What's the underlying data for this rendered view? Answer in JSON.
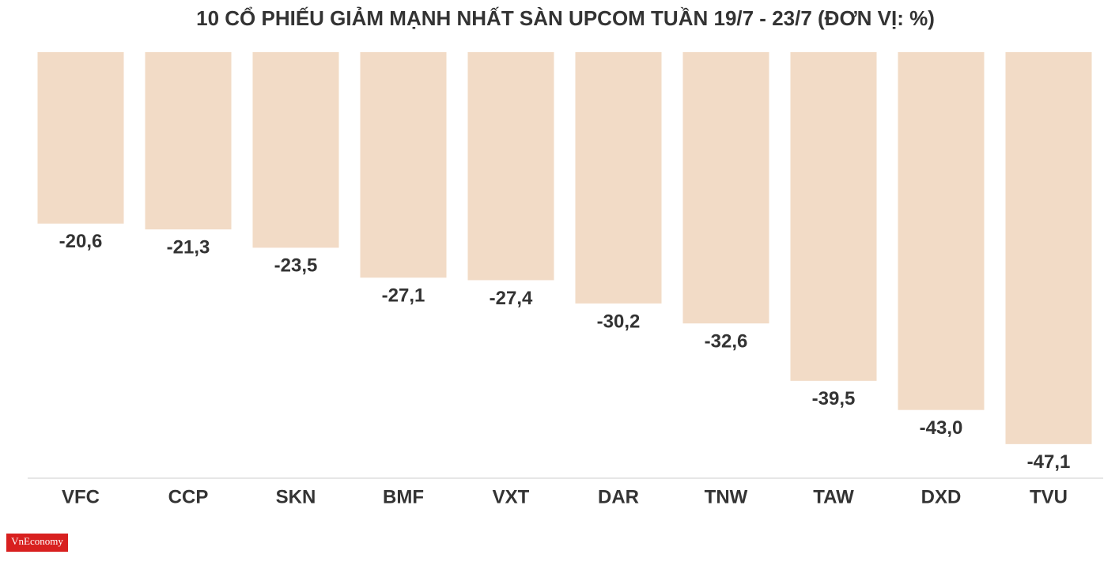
{
  "chart_data": {
    "type": "bar",
    "title": "10 CỔ PHIẾU GIẢM MẠNH NHẤT SÀN UPCOM TUẦN 19/7 - 23/7 (ĐƠN VỊ: %)",
    "categories": [
      "VFC",
      "CCP",
      "SKN",
      "BMF",
      "VXT",
      "DAR",
      "TNW",
      "TAW",
      "DXD",
      "TVU"
    ],
    "values": [
      -20.6,
      -21.3,
      -23.5,
      -27.1,
      -27.4,
      -30.2,
      -32.6,
      -39.5,
      -43.0,
      -47.1
    ],
    "value_labels": [
      "-20,6",
      "-21,3",
      "-23,5",
      "-27,1",
      "-27,4",
      "-30,2",
      "-32,6",
      "-39,5",
      "-43,0",
      "-47,1"
    ],
    "color": "#f2dbc6",
    "ylim": [
      -51.2,
      0
    ]
  },
  "logo": "VnEconomy"
}
